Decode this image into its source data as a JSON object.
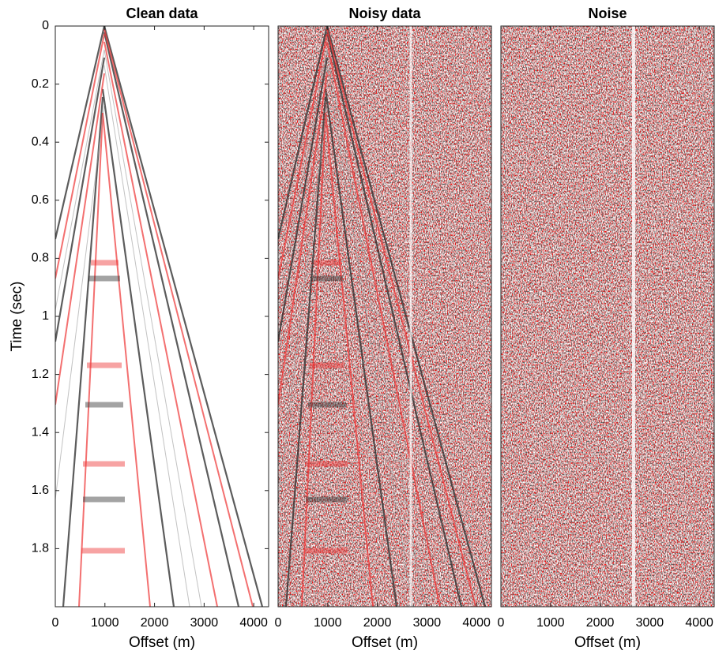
{
  "chart_data": [
    {
      "type": "image",
      "title": "Clean data",
      "xlabel": "Offset (m)",
      "ylabel": "Time (sec)",
      "xlim": [
        0,
        4300
      ],
      "ylim": [
        0,
        2
      ],
      "xticks": [
        0,
        1000,
        2000,
        3000,
        4000
      ],
      "yticks": [
        0,
        0.2,
        0.4,
        0.6,
        0.8,
        1,
        1.2,
        1.4,
        1.6,
        1.8
      ]
    },
    {
      "type": "image",
      "title": "Noisy data",
      "xlabel": "Offset (m)",
      "xlim": [
        0,
        4300
      ],
      "ylim": [
        0,
        2
      ],
      "xticks": [
        0,
        1000,
        2000,
        3000,
        4000
      ]
    },
    {
      "type": "image",
      "title": "Noise",
      "xlabel": "Offset (m)",
      "xlim": [
        0,
        4300
      ],
      "ylim": [
        0,
        2
      ],
      "xticks": [
        0,
        1000,
        2000,
        3000,
        4000
      ]
    }
  ]
}
